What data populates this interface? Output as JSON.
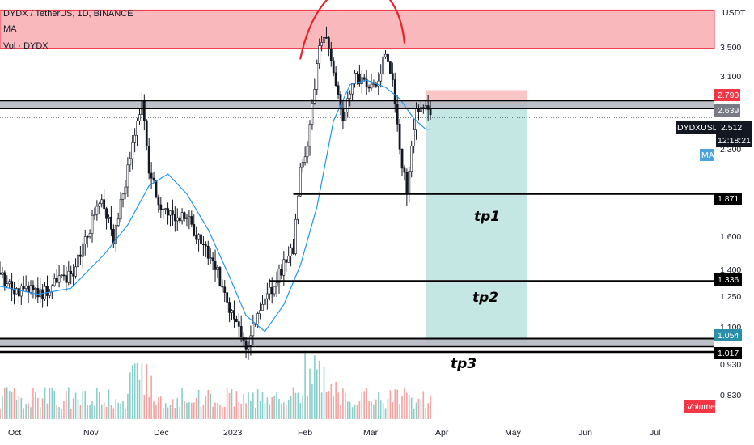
{
  "header": {
    "symbol_line": "DYDX / TetherUS, 1D, BINANCE",
    "indicator_ma": "MA",
    "indicator_vol": "Vol · DYDX"
  },
  "price_axis": {
    "currency": "USDT",
    "tick_labels": [
      "3.500",
      "3.100",
      "2.300",
      "1.600",
      "1.400",
      "1.250",
      "1.100",
      "0.930",
      "0.830"
    ]
  },
  "tags": {
    "target_top": "2.790",
    "target_mid": "2.639",
    "symbol": "DYDXUSDT",
    "current_price": "2.512",
    "countdown": "12:18:21",
    "ma_badge": "MA",
    "level_1": "1.871",
    "level_2": "1.336",
    "level_3": "1.054",
    "level_4": "1.017",
    "volume_badge": "Volume"
  },
  "annotations": {
    "tp1": "tp1",
    "tp2": "tp2",
    "tp3": "tp3"
  },
  "time_axis": {
    "labels": [
      "Oct",
      "Nov",
      "Dec",
      "2023",
      "Feb",
      "Mar",
      "Apr",
      "May",
      "Jun",
      "Jul"
    ]
  },
  "colors": {
    "up": "#26a69a",
    "down": "#ef5350",
    "candle": "#131722",
    "ma_line": "#2196f3",
    "resistance_zone": "#f7a1a6",
    "profit_zone": "#b2dfdb",
    "stop_zone": "#f7b6b6",
    "grey_band": "#b2b5be",
    "arc": "#e6232a",
    "ma_badge_bg": "#4ba3d9",
    "level_3_bg": "#2a8fa8"
  },
  "chart_data": {
    "type": "candlestick",
    "timeframe": "1D",
    "y_scale": "log",
    "ylim": [
      0.78,
      3.95
    ],
    "x_start": "2022-09-22",
    "x_end": "2023-07-20",
    "last_price": 2.512,
    "levels": [
      {
        "label": "2.639",
        "value": 2.639,
        "style": "grey-band"
      },
      {
        "label": "1.871",
        "value": 1.871,
        "style": "line"
      },
      {
        "label": "1.336",
        "value": 1.336,
        "style": "line"
      },
      {
        "label": "1.054",
        "value": 1.054,
        "style": "grey-band"
      },
      {
        "label": "1.017",
        "value": 1.017,
        "style": "line"
      }
    ],
    "resistance_zone": {
      "low": 3.28,
      "high": 3.8
    },
    "position": {
      "type": "short",
      "entry": 2.639,
      "stop": 2.79,
      "target": 1.054,
      "from": "2023-03-21",
      "to": "2023-05-03"
    },
    "targets": [
      {
        "name": "tp1",
        "value": 1.871
      },
      {
        "name": "tp2",
        "value": 1.336
      },
      {
        "name": "tp3",
        "value": 1.017
      }
    ],
    "close_path": [
      [
        "2022-09-22",
        1.38
      ],
      [
        "2022-09-28",
        1.28
      ],
      [
        "2022-10-04",
        1.3
      ],
      [
        "2022-10-10",
        1.27
      ],
      [
        "2022-10-16",
        1.33
      ],
      [
        "2022-10-22",
        1.36
      ],
      [
        "2022-10-28",
        1.55
      ],
      [
        "2022-11-03",
        1.84
      ],
      [
        "2022-11-07",
        1.7
      ],
      [
        "2022-11-09",
        1.55
      ],
      [
        "2022-11-12",
        1.8
      ],
      [
        "2022-11-17",
        2.24
      ],
      [
        "2022-11-21",
        2.65
      ],
      [
        "2022-11-24",
        2.05
      ],
      [
        "2022-11-28",
        1.82
      ],
      [
        "2022-12-04",
        1.72
      ],
      [
        "2022-12-10",
        1.7
      ],
      [
        "2022-12-16",
        1.55
      ],
      [
        "2022-12-22",
        1.42
      ],
      [
        "2022-12-28",
        1.2
      ],
      [
        "2023-01-01",
        1.1
      ],
      [
        "2023-01-04",
        1.03
      ],
      [
        "2023-01-08",
        1.16
      ],
      [
        "2023-01-12",
        1.22
      ],
      [
        "2023-01-16",
        1.33
      ],
      [
        "2023-01-20",
        1.42
      ],
      [
        "2023-01-24",
        1.52
      ],
      [
        "2023-01-27",
        2.02
      ],
      [
        "2023-01-31",
        2.4
      ],
      [
        "2023-02-04",
        3.3
      ],
      [
        "2023-02-06",
        3.45
      ],
      [
        "2023-02-10",
        3.05
      ],
      [
        "2023-02-14",
        2.48
      ],
      [
        "2023-02-19",
        2.95
      ],
      [
        "2023-02-24",
        2.85
      ],
      [
        "2023-03-01",
        2.9
      ],
      [
        "2023-03-04",
        3.28
      ],
      [
        "2023-03-08",
        2.7
      ],
      [
        "2023-03-10",
        2.2
      ],
      [
        "2023-03-13",
        1.9
      ],
      [
        "2023-03-15",
        2.25
      ],
      [
        "2023-03-17",
        2.55
      ],
      [
        "2023-03-20",
        2.62
      ],
      [
        "2023-03-23",
        2.512
      ]
    ],
    "ma_path": [
      [
        "2022-09-22",
        1.31
      ],
      [
        "2022-10-08",
        1.27
      ],
      [
        "2022-10-22",
        1.3
      ],
      [
        "2022-11-05",
        1.48
      ],
      [
        "2022-11-15",
        1.66
      ],
      [
        "2022-11-24",
        1.93
      ],
      [
        "2022-12-02",
        2.02
      ],
      [
        "2022-12-10",
        1.87
      ],
      [
        "2022-12-19",
        1.63
      ],
      [
        "2022-12-28",
        1.36
      ],
      [
        "2023-01-04",
        1.17
      ],
      [
        "2023-01-12",
        1.1
      ],
      [
        "2023-01-20",
        1.22
      ],
      [
        "2023-01-27",
        1.42
      ],
      [
        "2023-02-03",
        1.78
      ],
      [
        "2023-02-10",
        2.48
      ],
      [
        "2023-02-17",
        2.85
      ],
      [
        "2023-02-24",
        2.9
      ],
      [
        "2023-03-04",
        2.82
      ],
      [
        "2023-03-10",
        2.7
      ],
      [
        "2023-03-16",
        2.5
      ],
      [
        "2023-03-21",
        2.4
      ],
      [
        "2023-03-23",
        2.4
      ]
    ]
  }
}
